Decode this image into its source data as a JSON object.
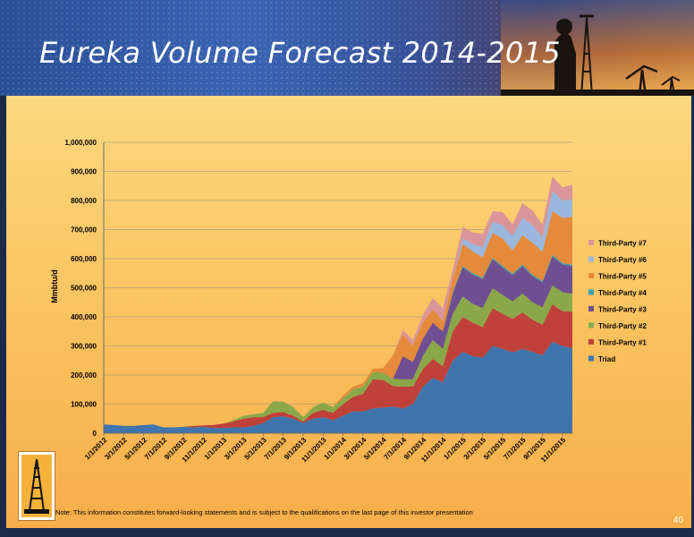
{
  "slide": {
    "title": "Eureka Volume Forecast 2014-2015",
    "note": "Note: This information constitutes forward-looking statements and is subject to the qualifications on the last page of this investor presentation",
    "page_number": "40"
  },
  "colors": {
    "Triad": "#3f75ad",
    "Third-Party #1": "#c0403a",
    "Third-Party #2": "#8aa84a",
    "Third-Party #3": "#6f4f91",
    "Third-Party #4": "#3aa0b4",
    "Third-Party #5": "#e48a3a",
    "Third-Party #6": "#99b7dc",
    "Third-Party #7": "#d9959a"
  },
  "chart_data": {
    "type": "area",
    "stacked": true,
    "ylabel": "Mmbtu/d",
    "ylim": [
      0,
      1000000
    ],
    "yticks": [
      "0",
      "100,000",
      "200,000",
      "300,000",
      "400,000",
      "500,000",
      "600,000",
      "700,000",
      "800,000",
      "900,000",
      "1,000,000"
    ],
    "xtick_labels": [
      "1/1/2012",
      "3/1/2012",
      "5/1/2012",
      "7/1/2012",
      "9/1/2012",
      "11/1/2012",
      "1/1/2013",
      "3/1/2013",
      "5/1/2013",
      "7/1/2013",
      "9/1/2013",
      "11/1/2013",
      "1/1/2014",
      "3/1/2014",
      "5/1/2014",
      "7/1/2014",
      "9/1/2014",
      "11/1/2014",
      "1/1/2015",
      "3/1/2015",
      "5/1/2015",
      "7/1/2015",
      "9/1/2015",
      "11/1/2015"
    ],
    "x": [
      "1/1/2012",
      "2/1/2012",
      "3/1/2012",
      "4/1/2012",
      "5/1/2012",
      "6/1/2012",
      "7/1/2012",
      "8/1/2012",
      "9/1/2012",
      "10/1/2012",
      "11/1/2012",
      "12/1/2012",
      "1/1/2013",
      "2/1/2013",
      "3/1/2013",
      "4/1/2013",
      "5/1/2013",
      "6/1/2013",
      "7/1/2013",
      "8/1/2013",
      "9/1/2013",
      "10/1/2013",
      "11/1/2013",
      "12/1/2013",
      "1/1/2014",
      "2/1/2014",
      "3/1/2014",
      "4/1/2014",
      "5/1/2014",
      "6/1/2014",
      "7/1/2014",
      "8/1/2014",
      "9/1/2014",
      "10/1/2014",
      "11/1/2014",
      "12/1/2014",
      "1/1/2015",
      "2/1/2015",
      "3/1/2015",
      "4/1/2015",
      "5/1/2015",
      "6/1/2015",
      "7/1/2015",
      "8/1/2015",
      "9/1/2015",
      "10/1/2015",
      "11/1/2015",
      "12/1/2015"
    ],
    "legend": [
      "Third-Party #7",
      "Third-Party #6",
      "Third-Party #5",
      "Third-Party #4",
      "Third-Party #3",
      "Third-Party #2",
      "Third-Party #1",
      "Triad"
    ],
    "legend_position": "right",
    "series": [
      {
        "name": "Triad",
        "values": [
          30000,
          28000,
          25000,
          25000,
          28000,
          30000,
          20000,
          20000,
          22000,
          20000,
          22000,
          18000,
          18000,
          20000,
          20000,
          25000,
          35000,
          55000,
          58000,
          50000,
          35000,
          50000,
          55000,
          45000,
          60000,
          75000,
          75000,
          85000,
          88000,
          92000,
          85000,
          100000,
          160000,
          190000,
          175000,
          250000,
          280000,
          265000,
          260000,
          300000,
          290000,
          278000,
          290000,
          280000,
          268000,
          315000,
          300000,
          292000
        ]
      },
      {
        "name": "Third-Party #1",
        "values": [
          0,
          0,
          0,
          0,
          0,
          0,
          0,
          0,
          0,
          5000,
          5000,
          10000,
          15000,
          20000,
          30000,
          30000,
          20000,
          15000,
          15000,
          10000,
          5000,
          20000,
          25000,
          25000,
          40000,
          50000,
          60000,
          100000,
          95000,
          70000,
          75000,
          60000,
          60000,
          65000,
          55000,
          100000,
          120000,
          115000,
          105000,
          130000,
          120000,
          115000,
          125000,
          110000,
          105000,
          128000,
          120000,
          125000
        ]
      },
      {
        "name": "Third-Party #2",
        "values": [
          0,
          0,
          0,
          0,
          0,
          0,
          0,
          0,
          0,
          0,
          0,
          0,
          0,
          5000,
          10000,
          10000,
          15000,
          40000,
          35000,
          30000,
          15000,
          20000,
          25000,
          20000,
          20000,
          25000,
          25000,
          25000,
          25000,
          25000,
          25000,
          25000,
          45000,
          65000,
          60000,
          60000,
          70000,
          65000,
          65000,
          68000,
          65000,
          60000,
          65000,
          60000,
          60000,
          65000,
          65000,
          62000
        ]
      },
      {
        "name": "Third-Party #3",
        "values": [
          0,
          0,
          0,
          0,
          0,
          0,
          0,
          0,
          0,
          0,
          0,
          0,
          0,
          0,
          0,
          0,
          0,
          0,
          0,
          0,
          0,
          0,
          0,
          0,
          0,
          0,
          0,
          0,
          0,
          0,
          80000,
          60000,
          60000,
          60000,
          60000,
          70000,
          100000,
          100000,
          100000,
          100000,
          95000,
          90000,
          95000,
          90000,
          85000,
          100000,
          95000,
          95000
        ]
      },
      {
        "name": "Third-Party #4",
        "values": [
          0,
          0,
          0,
          0,
          0,
          0,
          0,
          0,
          0,
          0,
          0,
          0,
          0,
          0,
          0,
          0,
          0,
          0,
          0,
          0,
          0,
          0,
          0,
          0,
          0,
          0,
          0,
          0,
          0,
          0,
          0,
          0,
          0,
          0,
          0,
          5000,
          5000,
          5000,
          5000,
          5000,
          5000,
          5000,
          5000,
          5000,
          5000,
          5000,
          5000,
          5000
        ]
      },
      {
        "name": "Third-Party #5",
        "values": [
          0,
          0,
          0,
          0,
          0,
          0,
          0,
          0,
          0,
          0,
          0,
          0,
          0,
          0,
          0,
          0,
          0,
          0,
          0,
          0,
          0,
          0,
          0,
          0,
          10000,
          10000,
          12000,
          12000,
          15000,
          80000,
          75000,
          55000,
          55000,
          45000,
          35000,
          45000,
          75000,
          75000,
          70000,
          85000,
          95000,
          80000,
          100000,
          110000,
          100000,
          150000,
          155000,
          165000
        ]
      },
      {
        "name": "Third-Party #6",
        "values": [
          0,
          0,
          0,
          0,
          0,
          0,
          0,
          0,
          0,
          0,
          0,
          0,
          0,
          0,
          0,
          0,
          0,
          0,
          0,
          0,
          0,
          0,
          0,
          0,
          0,
          0,
          0,
          0,
          0,
          0,
          0,
          0,
          0,
          0,
          0,
          0,
          20000,
          25000,
          35000,
          40000,
          45000,
          50000,
          60000,
          60000,
          50000,
          70000,
          60000,
          60000
        ]
      },
      {
        "name": "Third-Party #7",
        "values": [
          0,
          0,
          0,
          0,
          0,
          0,
          0,
          0,
          0,
          0,
          0,
          0,
          0,
          0,
          0,
          0,
          0,
          0,
          0,
          0,
          0,
          0,
          0,
          0,
          0,
          0,
          0,
          0,
          0,
          0,
          15000,
          20000,
          25000,
          40000,
          45000,
          30000,
          40000,
          40000,
          45000,
          35000,
          45000,
          40000,
          50000,
          50000,
          45000,
          50000,
          45000,
          50000
        ]
      }
    ]
  }
}
